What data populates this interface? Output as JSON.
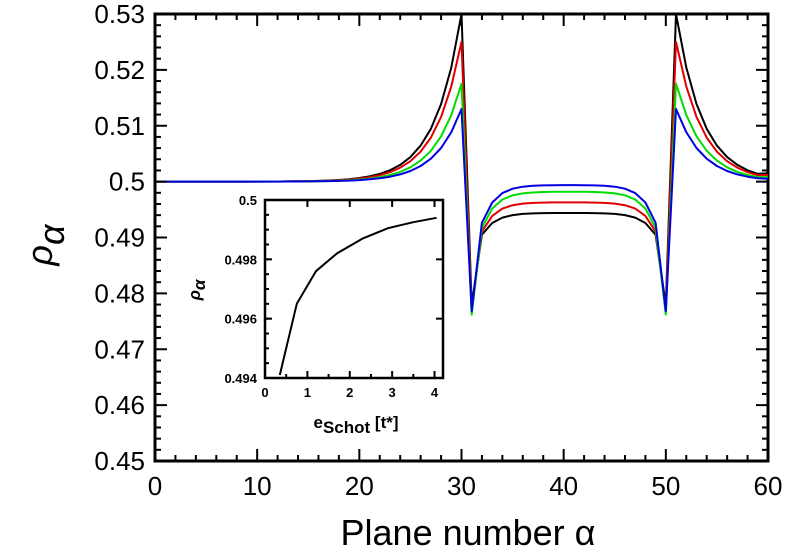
{
  "chart_data": [
    {
      "type": "line",
      "xlabel": "Plane number α",
      "ylabel": "ρ_α",
      "xlim": [
        0,
        60
      ],
      "ylim": [
        0.45,
        0.53
      ],
      "xticks": [
        "0",
        "10",
        "20",
        "30",
        "40",
        "50",
        "60"
      ],
      "yticks": [
        "0.45",
        "0.46",
        "0.47",
        "0.48",
        "0.49",
        "0.5",
        "0.51",
        "0.52",
        "0.53"
      ],
      "grid": false,
      "series": [
        {
          "color": "#000000",
          "peak": 0.53,
          "dip": 0.478,
          "mid": 0.4944,
          "tail": 0.5015
        },
        {
          "color": "#e00000",
          "peak": 0.525,
          "dip": 0.477,
          "mid": 0.4963,
          "tail": 0.5012
        },
        {
          "color": "#00dd00",
          "peak": 0.5175,
          "dip": 0.4762,
          "mid": 0.4982,
          "tail": 0.5008
        },
        {
          "color": "#0000e0",
          "peak": 0.513,
          "dip": 0.4768,
          "mid": 0.4994,
          "tail": 0.5005
        }
      ]
    },
    {
      "type": "line",
      "xlabel": "e_Schot [t*]",
      "ylabel": "ρ_α",
      "xlim": [
        0,
        4.2
      ],
      "ylim": [
        0.494,
        0.5
      ],
      "xticks": [
        "0",
        "1",
        "2",
        "3",
        "4"
      ],
      "yticks": [
        "0.494",
        "0.496",
        "0.498",
        "0.5"
      ],
      "series": [
        {
          "color": "#000000",
          "x": [
            0.35,
            0.75,
            1.2,
            1.7,
            2.3,
            2.9,
            3.5,
            4.05
          ],
          "y": [
            0.4941,
            0.4965,
            0.4976,
            0.4982,
            0.4987,
            0.49905,
            0.49925,
            0.4994
          ]
        }
      ]
    }
  ]
}
